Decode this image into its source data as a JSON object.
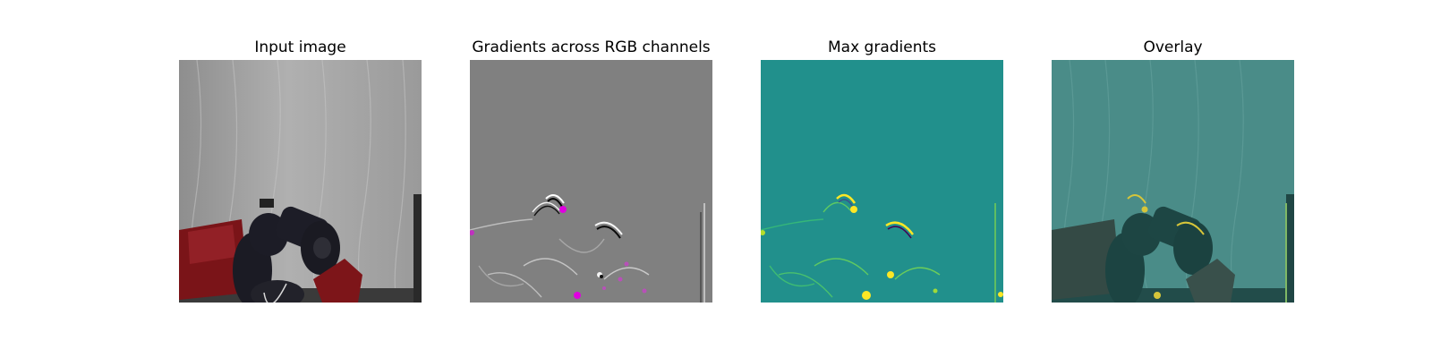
{
  "panels": [
    {
      "title": "Input image",
      "scene": "robot-arm-photo"
    },
    {
      "title": "Gradients across RGB channels",
      "scene": "rgb-gradient-map"
    },
    {
      "title": "Max gradients",
      "scene": "max-gradient-heatmap"
    },
    {
      "title": "Overlay",
      "scene": "heatmap-overlay-on-photo"
    }
  ],
  "colors": {
    "background": "#ffffff",
    "curtain": "#a9a9a9",
    "robot_red": "#7a1418",
    "gradient_gray": "#808080",
    "gradient_highlight": "#e000e0",
    "heatmap_base": "#21908c",
    "heatmap_peak": "#fde725",
    "overlay_tint": "#3d8480"
  }
}
